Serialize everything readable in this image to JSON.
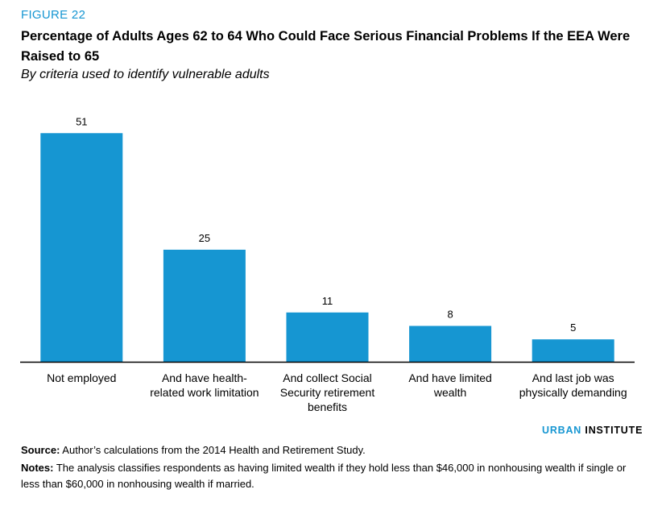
{
  "figure_label": "FIGURE 22",
  "chart_data": {
    "type": "bar",
    "title": "Percentage of Adults Ages 62 to 64 Who Could Face Serious Financial Problems If the EEA Were Raised to 65",
    "subtitle": "By criteria used to identify vulnerable adults",
    "categories": [
      [
        "Not employed"
      ],
      [
        "And have health-",
        "related work limitation"
      ],
      [
        "And collect Social",
        "Security retirement",
        "benefits"
      ],
      [
        "And have limited",
        "wealth"
      ],
      [
        "And last job was",
        "physically demanding"
      ]
    ],
    "values": [
      51,
      25,
      11,
      8,
      5
    ],
    "data_labels": [
      "51",
      "25",
      "11",
      "8",
      "5"
    ],
    "ylim": [
      0,
      55
    ],
    "grid": false,
    "bar_color": "#1696d2"
  },
  "brand": {
    "part1": "URBAN",
    "part2": "INSTITUTE"
  },
  "source": {
    "label": "Source:",
    "text": " Author’s calculations from the 2014 Health and Retirement Study."
  },
  "notes": {
    "label": "Notes:",
    "text": " The analysis classifies respondents as having limited wealth if they hold less than $46,000 in nonhousing wealth if single or less than $60,000 in nonhousing wealth if married."
  }
}
